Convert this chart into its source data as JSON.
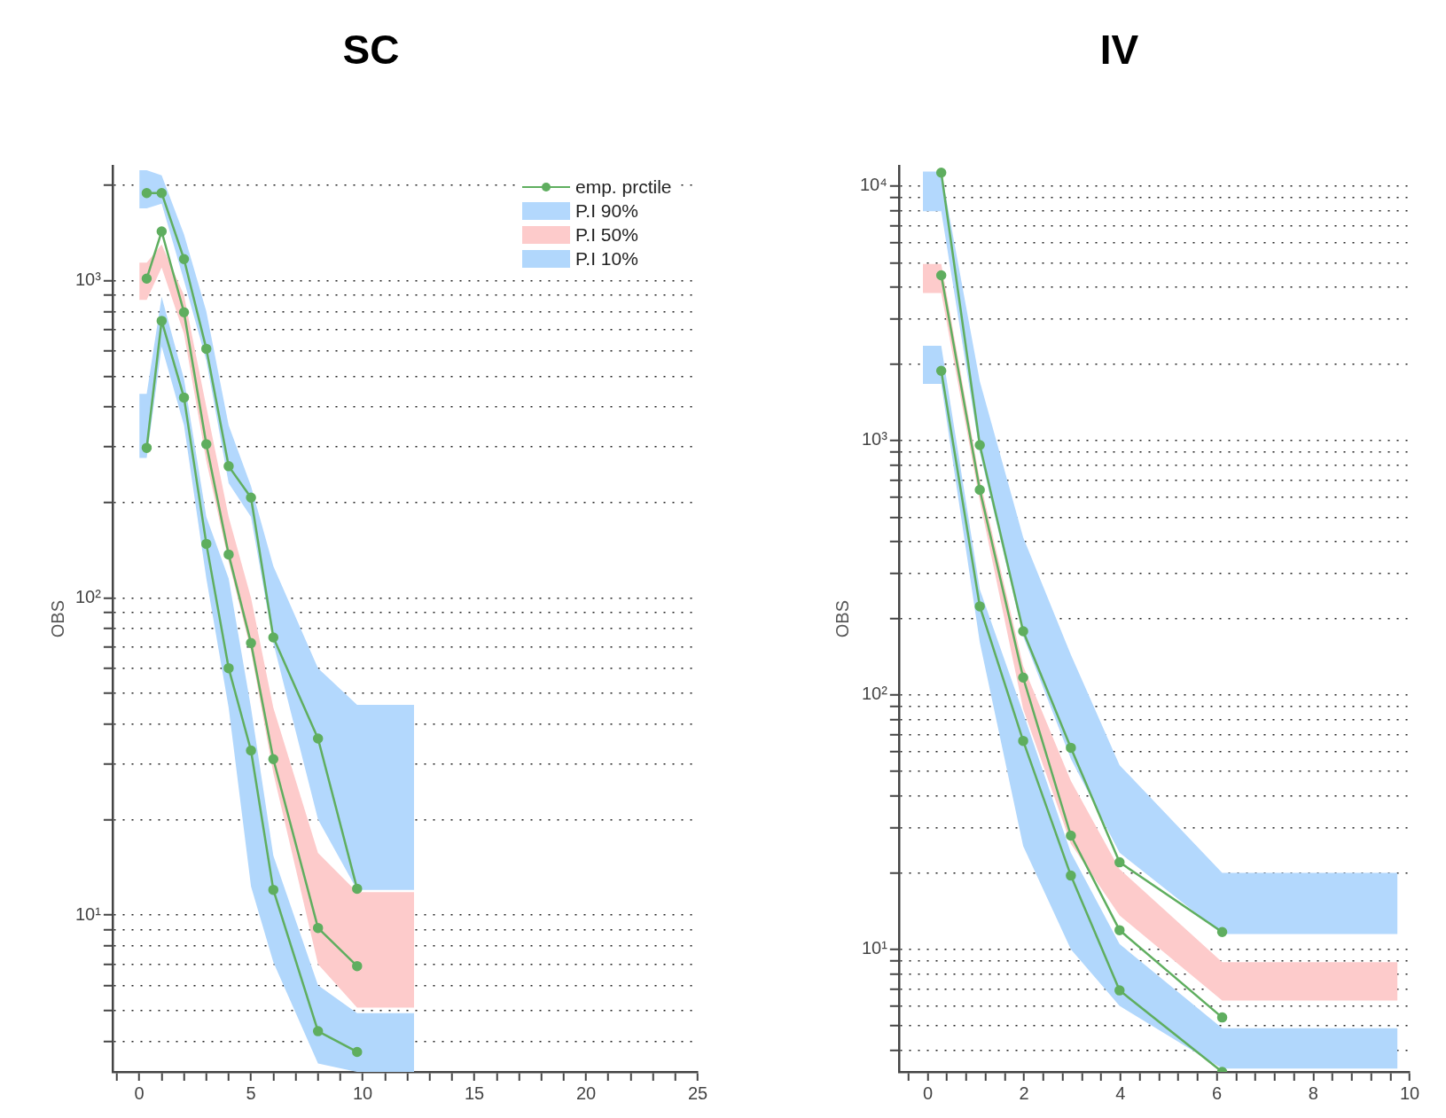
{
  "chart_data": [
    {
      "type": "line",
      "title": "SC",
      "ylabel": "OBS",
      "log": "y",
      "grid": "y",
      "marker": "circle",
      "line_style": "solid",
      "legend": "top right",
      "xlim": [
        -1.2,
        25
      ],
      "xticks": [
        {
          "value": -1,
          "label": null
        },
        0,
        {
          "value": 1,
          "label": null
        },
        {
          "value": 2,
          "label": null
        },
        {
          "value": 3,
          "label": null
        },
        {
          "value": 4,
          "label": null
        },
        5,
        {
          "value": 6,
          "label": null
        },
        {
          "value": 7,
          "label": null
        },
        {
          "value": 8,
          "label": null
        },
        {
          "value": 9,
          "label": null
        },
        10,
        {
          "value": 11,
          "label": null
        },
        {
          "value": 12,
          "label": null
        },
        {
          "value": 13,
          "label": null
        },
        {
          "value": 14,
          "label": null
        },
        15,
        {
          "value": 16,
          "label": null
        },
        {
          "value": 17,
          "label": null
        },
        {
          "value": 18,
          "label": null
        },
        {
          "value": 19,
          "label": null
        },
        20,
        {
          "value": 21,
          "label": null
        },
        {
          "value": 22,
          "label": null
        },
        {
          "value": 23,
          "label": null
        },
        {
          "value": 24,
          "label": null
        },
        25
      ],
      "ylim": [
        3.2,
        2300
      ],
      "yticks": [
        {
          "value": 4,
          "label": null
        },
        {
          "value": 5,
          "label": null
        },
        {
          "value": 6,
          "label": null
        },
        {
          "value": 7,
          "label": null
        },
        {
          "value": 8,
          "label": null
        },
        {
          "value": 9,
          "label": null
        },
        {
          "value": 10,
          "label": "10¹"
        },
        {
          "value": 20,
          "label": null
        },
        {
          "value": 30,
          "label": null
        },
        {
          "value": 40,
          "label": null
        },
        {
          "value": 50,
          "label": null
        },
        {
          "value": 60,
          "label": null
        },
        {
          "value": 70,
          "label": null
        },
        {
          "value": 80,
          "label": null
        },
        {
          "value": 90,
          "label": null
        },
        {
          "value": 100,
          "label": "10²"
        },
        {
          "value": 200,
          "label": null
        },
        {
          "value": 300,
          "label": null
        },
        {
          "value": 400,
          "label": null
        },
        {
          "value": 500,
          "label": null
        },
        {
          "value": 600,
          "label": null
        },
        {
          "value": 700,
          "label": null
        },
        {
          "value": 800,
          "label": null
        },
        {
          "value": 900,
          "label": null
        },
        {
          "value": 1000,
          "label": "10³"
        },
        {
          "value": 2000,
          "label": null
        }
      ],
      "series": [
        {
          "name": "emp. prctile",
          "type": "line",
          "color": "#5fae5f",
          "x": [
            0.33,
            1,
            2,
            3,
            4,
            5,
            6,
            8,
            9.75
          ],
          "values": [
            1890,
            1890,
            1170,
            610,
            260,
            207,
            75,
            36,
            12.1
          ]
        },
        {
          "type": "line",
          "color": "#5fae5f",
          "x": [
            0.33,
            1,
            2,
            3,
            4,
            5,
            6,
            8,
            9.75
          ],
          "values": [
            1015,
            1430,
            795,
            305,
            137,
            72,
            31,
            9.1,
            6.9
          ]
        },
        {
          "type": "line",
          "color": "#5fae5f",
          "x": [
            0.33,
            1,
            2,
            3,
            4,
            5,
            6,
            8,
            9.75
          ],
          "values": [
            297,
            747,
            428,
            148,
            60,
            33,
            12,
            4.3,
            3.7
          ]
        },
        {
          "name": "P.I 90%",
          "type": "area",
          "color": "#b3d8fd",
          "x": [
            0,
            0.33,
            1,
            2,
            3,
            4,
            5,
            6,
            8,
            9.75,
            12.3
          ],
          "values": [
            null,
            null,
            null,
            null,
            null,
            null,
            null,
            null,
            null,
            null,
            null
          ],
          "lower": [
            1690,
            1690,
            1750,
            1000,
            560,
            230,
            180,
            72,
            20,
            12,
            12
          ],
          "upper": [
            2230,
            2230,
            2150,
            1400,
            800,
            350,
            225,
            126,
            60,
            46,
            46
          ]
        },
        {
          "name": "P.I 50%",
          "type": "area",
          "color": "#fdcbcb",
          "x": [
            0,
            0.33,
            1,
            2,
            3,
            4,
            5,
            6,
            8,
            9.75,
            12.3
          ],
          "values": [
            null,
            null,
            null,
            null,
            null,
            null,
            null,
            null,
            null,
            null,
            null
          ],
          "lower": [
            870,
            870,
            1100,
            680,
            270,
            130,
            68,
            28,
            7,
            5.1,
            5.1
          ],
          "upper": [
            1140,
            1140,
            1300,
            900,
            400,
            180,
            100,
            45,
            15.7,
            11.8,
            11.8
          ]
        },
        {
          "name": "P.I 10%",
          "type": "area",
          "color": "#b1d7fc",
          "x": [
            0,
            0.33,
            1,
            2,
            3,
            4,
            5,
            6,
            8,
            9.75,
            12.3
          ],
          "values": [
            null,
            null,
            null,
            null,
            null,
            null,
            null,
            null,
            null,
            null,
            null
          ],
          "lower": [
            276,
            276,
            620,
            350,
            115,
            45,
            12.3,
            7.1,
            3.4,
            3.2,
            3.2
          ],
          "upper": [
            440,
            440,
            890,
            490,
            180,
            115,
            45,
            15.4,
            6,
            4.9,
            4.9
          ]
        }
      ]
    },
    {
      "type": "line",
      "title": "IV",
      "ylabel": "OBS",
      "log": "y",
      "grid": "y",
      "marker": "circle",
      "line_style": "solid",
      "xlim": [
        -0.6,
        10
      ],
      "xticks": [
        {
          "value": -0.4,
          "label": null
        },
        0,
        {
          "value": 0.4,
          "label": null
        },
        {
          "value": 0.8,
          "label": null
        },
        {
          "value": 1.2,
          "label": null
        },
        {
          "value": 1.6,
          "label": null
        },
        2,
        {
          "value": 2.4,
          "label": null
        },
        {
          "value": 2.8,
          "label": null
        },
        {
          "value": 3.2,
          "label": null
        },
        {
          "value": 3.6,
          "label": null
        },
        4,
        {
          "value": 4.4,
          "label": null
        },
        {
          "value": 4.8,
          "label": null
        },
        {
          "value": 5.2,
          "label": null
        },
        {
          "value": 5.6,
          "label": null
        },
        6,
        {
          "value": 6.4,
          "label": null
        },
        {
          "value": 6.8,
          "label": null
        },
        {
          "value": 7.2,
          "label": null
        },
        {
          "value": 7.6,
          "label": null
        },
        8,
        {
          "value": 8.4,
          "label": null
        },
        {
          "value": 8.8,
          "label": null
        },
        {
          "value": 9.2,
          "label": null
        },
        {
          "value": 9.6,
          "label": null
        },
        10
      ],
      "ylim": [
        3.3,
        12000
      ],
      "yticks": [
        {
          "value": 4,
          "label": null
        },
        {
          "value": 5,
          "label": null
        },
        {
          "value": 6,
          "label": null
        },
        {
          "value": 7,
          "label": null
        },
        {
          "value": 8,
          "label": null
        },
        {
          "value": 9,
          "label": null
        },
        {
          "value": 10,
          "label": "10¹"
        },
        {
          "value": 20,
          "label": null
        },
        {
          "value": 30,
          "label": null
        },
        {
          "value": 40,
          "label": null
        },
        {
          "value": 50,
          "label": null
        },
        {
          "value": 60,
          "label": null
        },
        {
          "value": 70,
          "label": null
        },
        {
          "value": 80,
          "label": null
        },
        {
          "value": 90,
          "label": null
        },
        {
          "value": 100,
          "label": "10²"
        },
        {
          "value": 200,
          "label": null
        },
        {
          "value": 300,
          "label": null
        },
        {
          "value": 400,
          "label": null
        },
        {
          "value": 500,
          "label": null
        },
        {
          "value": 600,
          "label": null
        },
        {
          "value": 700,
          "label": null
        },
        {
          "value": 800,
          "label": null
        },
        {
          "value": 900,
          "label": null
        },
        {
          "value": 1000,
          "label": "10³"
        },
        {
          "value": 2000,
          "label": null
        },
        {
          "value": 3000,
          "label": null
        },
        {
          "value": 4000,
          "label": null
        },
        {
          "value": 5000,
          "label": null
        },
        {
          "value": 6000,
          "label": null
        },
        {
          "value": 7000,
          "label": null
        },
        {
          "value": 8000,
          "label": null
        },
        {
          "value": 9000,
          "label": null
        },
        {
          "value": 10000,
          "label": "10⁴"
        }
      ],
      "series": [
        {
          "type": "line",
          "color": "#5fae5f",
          "x": [
            0.28,
            1.08,
            1.98,
            2.97,
            3.98,
            6.11
          ],
          "values": [
            11300,
            960,
            178,
            62,
            22,
            11.7
          ]
        },
        {
          "type": "line",
          "color": "#5fae5f",
          "x": [
            0.28,
            1.08,
            1.98,
            2.97,
            3.98,
            6.11
          ],
          "values": [
            4460,
            640,
            117,
            28,
            11.9,
            5.4
          ]
        },
        {
          "type": "line",
          "color": "#5fae5f",
          "x": [
            0.28,
            1.08,
            1.98,
            2.97,
            3.98,
            6.11
          ],
          "values": [
            1880,
            223,
            66,
            19.5,
            6.9,
            3.3
          ]
        },
        {
          "type": "area",
          "color": "#b3d8fd",
          "x": [
            -0.1,
            0.28,
            1.08,
            1.98,
            2.97,
            3.98,
            6.11,
            9.75
          ],
          "values": [
            null,
            null,
            null,
            null,
            null,
            null,
            null,
            null
          ],
          "lower": [
            7960,
            7960,
            900,
            170,
            56,
            24,
            11.5,
            11.5
          ],
          "upper": [
            11400,
            11400,
            1710,
            417,
            144,
            53,
            20,
            20
          ]
        },
        {
          "type": "area",
          "color": "#fdcbcb",
          "x": [
            -0.1,
            0.28,
            1.08,
            1.98,
            2.97,
            3.98,
            6.11,
            9.75
          ],
          "values": [
            null,
            null,
            null,
            null,
            null,
            null,
            null,
            null
          ],
          "lower": [
            3800,
            3800,
            580,
            88,
            26,
            13.6,
            6.3,
            6.3
          ],
          "upper": [
            4940,
            4940,
            700,
            130,
            46,
            20.7,
            8.9,
            8.9
          ]
        },
        {
          "type": "area",
          "color": "#b1d7fc",
          "x": [
            -0.1,
            0.28,
            1.08,
            1.98,
            2.97,
            3.98,
            6.11,
            9.75
          ],
          "values": [
            null,
            null,
            null,
            null,
            null,
            null,
            null,
            null
          ],
          "lower": [
            1670,
            1670,
            161,
            25.5,
            10,
            6,
            3.4,
            3.4
          ],
          "upper": [
            2360,
            2360,
            260,
            85,
            24,
            10.5,
            4.9,
            4.9
          ]
        }
      ]
    }
  ]
}
